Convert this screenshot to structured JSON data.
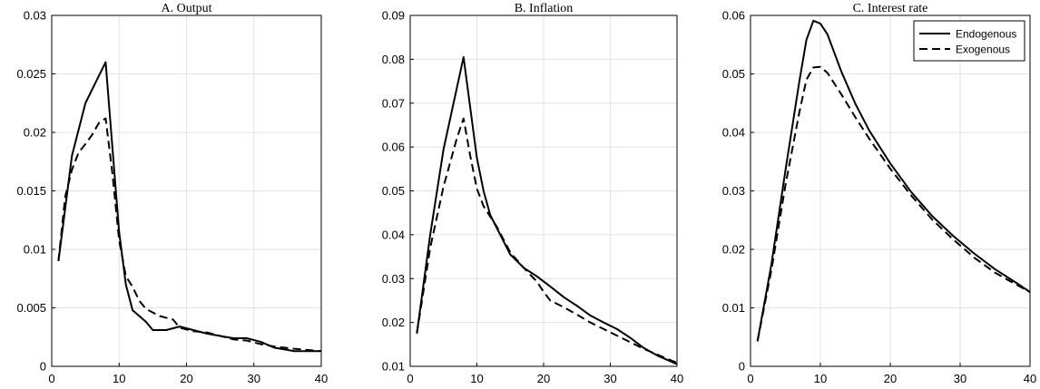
{
  "chart_data": [
    {
      "type": "line",
      "title": "A. Output",
      "xlim": [
        0,
        40
      ],
      "ylim": [
        0,
        0.03
      ],
      "xticks": [
        "0",
        "10",
        "20",
        "30",
        "40"
      ],
      "yticks": [
        "0",
        "0.005",
        "0.01",
        "0.015",
        "0.02",
        "0.025",
        "0.03"
      ],
      "grid": true,
      "series": [
        {
          "name": "Endogenous",
          "style": "solid",
          "x": [
            1,
            3,
            5,
            8,
            10,
            11,
            12,
            14,
            15,
            17,
            19,
            21,
            23,
            25,
            27,
            29,
            31,
            33,
            36,
            40
          ],
          "y": [
            0.009,
            0.018,
            0.0225,
            0.026,
            0.0115,
            0.007,
            0.0048,
            0.0038,
            0.0031,
            0.0031,
            0.0034,
            0.0031,
            0.0028,
            0.0026,
            0.0024,
            0.0024,
            0.0021,
            0.0016,
            0.0013,
            0.0013
          ]
        },
        {
          "name": "Exogenous",
          "style": "dashed",
          "x": [
            1,
            2,
            3,
            4,
            5,
            6,
            7,
            8,
            9,
            10,
            11,
            12,
            13,
            14,
            16,
            18,
            19,
            21,
            23,
            25,
            27,
            29,
            31,
            33,
            36,
            40
          ],
          "y": [
            0.009,
            0.0145,
            0.0168,
            0.0183,
            0.019,
            0.0198,
            0.0208,
            0.0212,
            0.0165,
            0.0108,
            0.0077,
            0.0068,
            0.0056,
            0.0049,
            0.0043,
            0.004,
            0.0033,
            0.003,
            0.0029,
            0.0026,
            0.0023,
            0.0022,
            0.0019,
            0.0017,
            0.0015,
            0.0013
          ]
        }
      ]
    },
    {
      "type": "line",
      "title": "B. Inflation",
      "xlim": [
        0,
        40
      ],
      "ylim": [
        0.01,
        0.09
      ],
      "xticks": [
        "0",
        "10",
        "20",
        "30",
        "40"
      ],
      "yticks": [
        "0.01",
        "0.02",
        "0.03",
        "0.04",
        "0.05",
        "0.06",
        "0.07",
        "0.08",
        "0.09"
      ],
      "grid": true,
      "series": [
        {
          "name": "Endogenous",
          "style": "solid",
          "x": [
            1,
            3,
            5,
            8,
            10,
            11,
            12,
            13,
            15,
            17,
            19,
            21,
            23,
            25,
            27,
            29,
            31,
            33,
            35,
            37,
            40
          ],
          "y": [
            0.0175,
            0.04,
            0.0595,
            0.0805,
            0.0575,
            0.05,
            0.0445,
            0.0415,
            0.0355,
            0.0325,
            0.0305,
            0.0282,
            0.0258,
            0.0238,
            0.0216,
            0.02,
            0.0185,
            0.0165,
            0.0142,
            0.0125,
            0.0105
          ]
        },
        {
          "name": "Exogenous",
          "style": "dashed",
          "x": [
            1,
            3,
            5,
            7,
            8,
            9,
            10,
            11,
            13,
            15,
            17,
            19,
            20,
            21,
            23,
            25,
            27,
            29,
            31,
            33,
            35,
            37,
            40
          ],
          "y": [
            0.0175,
            0.037,
            0.051,
            0.062,
            0.0665,
            0.058,
            0.0505,
            0.0465,
            0.0418,
            0.036,
            0.0325,
            0.0293,
            0.027,
            0.025,
            0.0235,
            0.0218,
            0.02,
            0.0185,
            0.017,
            0.0155,
            0.014,
            0.0127,
            0.0108
          ]
        }
      ]
    },
    {
      "type": "line",
      "title": "C. Interest rate",
      "xlim": [
        0,
        40
      ],
      "ylim": [
        0,
        0.06
      ],
      "xticks": [
        "0",
        "10",
        "20",
        "30",
        "40"
      ],
      "yticks": [
        "0",
        "0.01",
        "0.02",
        "0.03",
        "0.04",
        "0.05",
        "0.06"
      ],
      "grid": true,
      "legend": {
        "position": "top-right",
        "entries": [
          "Endogenous",
          "Exogenous"
        ]
      },
      "series": [
        {
          "name": "Endogenous",
          "style": "solid",
          "x": [
            1,
            3,
            5,
            7,
            8,
            9,
            10,
            11,
            13,
            15,
            17,
            20,
            23,
            26,
            29,
            32,
            35,
            38,
            40
          ],
          "y": [
            0.0043,
            0.0175,
            0.0335,
            0.0488,
            0.0558,
            0.0591,
            0.0586,
            0.0568,
            0.0504,
            0.0449,
            0.0403,
            0.0347,
            0.0298,
            0.0257,
            0.0223,
            0.0193,
            0.0166,
            0.0143,
            0.0127
          ]
        },
        {
          "name": "Exogenous",
          "style": "dashed",
          "x": [
            1,
            3,
            5,
            7,
            8,
            9,
            10,
            11,
            13,
            15,
            17,
            20,
            23,
            26,
            29,
            32,
            35,
            38,
            40
          ],
          "y": [
            0.0043,
            0.0165,
            0.031,
            0.0435,
            0.049,
            0.0511,
            0.0512,
            0.0502,
            0.0465,
            0.0426,
            0.0389,
            0.0338,
            0.0292,
            0.0251,
            0.0217,
            0.0186,
            0.016,
            0.014,
            0.0127
          ]
        }
      ]
    }
  ]
}
